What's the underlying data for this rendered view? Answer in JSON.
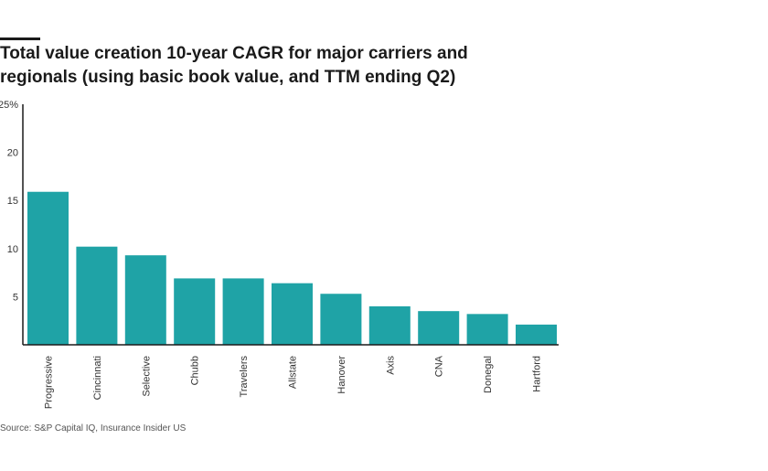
{
  "header": {
    "title": "Total value creation 10-year CAGR for major carriers and regionals (using basic book value, and TTM ending Q2)"
  },
  "footer": {
    "source": "Source: S&P Capital IQ, Insurance Insider US"
  },
  "colors": {
    "bar": "#1fa3a6",
    "axis": "#1a1a1a",
    "text": "#333333"
  },
  "chart_data": {
    "type": "bar",
    "title": "Total value creation 10-year CAGR for major carriers and regionals (using basic book value, and TTM ending Q2)",
    "xlabel": "",
    "ylabel": "",
    "categories": [
      "Progressive",
      "Cincinnati",
      "Selective",
      "Chubb",
      "Travelers",
      "Allstate",
      "Hanover",
      "Axis",
      "CNA",
      "Donegal",
      "Hartford"
    ],
    "values": [
      15.9,
      10.2,
      9.3,
      6.9,
      6.9,
      6.4,
      5.3,
      4.0,
      3.5,
      3.2,
      2.1
    ],
    "ylim": [
      0,
      25
    ],
    "yticks": [
      5,
      10,
      15,
      20,
      25
    ],
    "ytick_labels": [
      "5",
      "10",
      "15",
      "20",
      "25%"
    ],
    "grid": false,
    "legend": "none"
  }
}
